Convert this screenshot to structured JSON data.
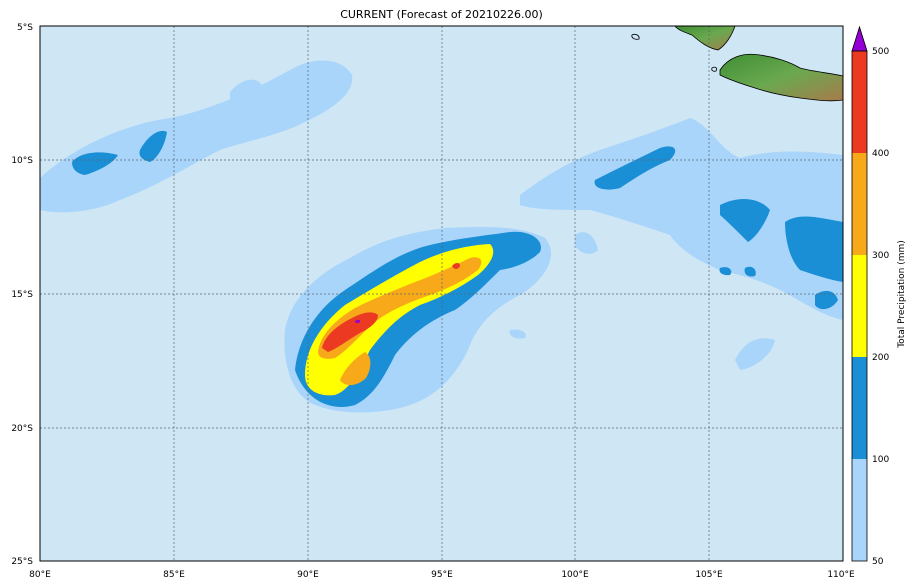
{
  "title": "CURRENT (Forecast of 20210226.00)",
  "colors": {
    "ocean": "#cfe6f5",
    "band_50_100": "#a9d5fa",
    "band_100_200": "#1a8fd6",
    "band_200_300": "#ffff00",
    "band_300_400": "#f8a91a",
    "band_400_500": "#ec3a22",
    "band_over_500": "#9400d3",
    "land_green": "#4e9a3a",
    "land_brown": "#b07a4a"
  },
  "lat_labels": [
    "5°S",
    "10°S",
    "15°S",
    "20°S",
    "25°S"
  ],
  "lon_labels": [
    "80°E",
    "85°E",
    "90°E",
    "95°E",
    "100°E",
    "105°E",
    "110°E"
  ],
  "colorbar": {
    "title": "Total Precipitation (mm)",
    "ticks": [
      "50",
      "100",
      "200",
      "300",
      "400",
      "500"
    ]
  }
}
